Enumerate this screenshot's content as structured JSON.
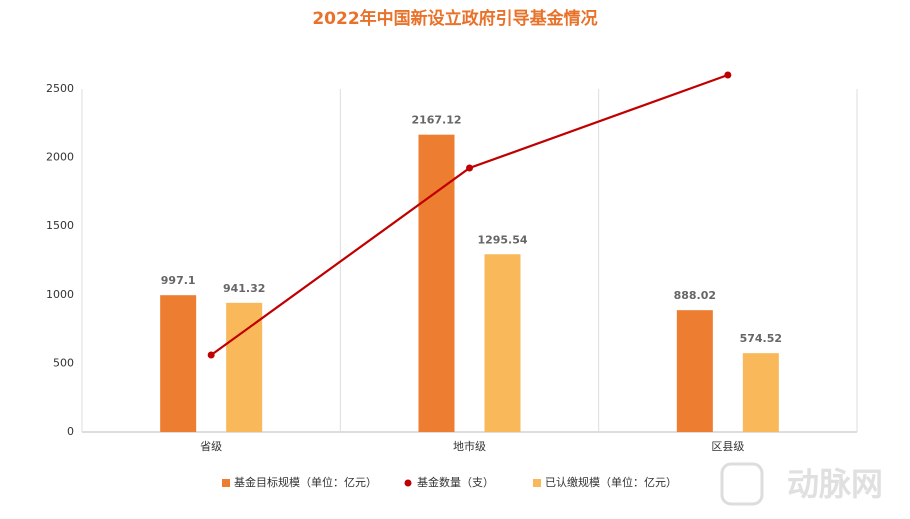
{
  "chart_data": {
    "type": "bar",
    "title": "2022年中国新设立政府引导基金情况",
    "categories": [
      "省级",
      "地市级",
      "区县级"
    ],
    "series": [
      {
        "name": "基金目标规模（单位：亿元）",
        "type": "bar",
        "color": "#ed7d31",
        "values": [
          997.1,
          2167.12,
          888.02
        ]
      },
      {
        "name": "基金数量（支）",
        "type": "line",
        "color": "#c00000",
        "values": [
          561,
          1924,
          2602
        ]
      },
      {
        "name": "已认缴规模（单位：亿元）",
        "type": "bar",
        "color": "#f9b85a",
        "values": [
          941.32,
          1295.54,
          574.52
        ]
      }
    ],
    "ylim": [
      0,
      2500
    ],
    "yticks": [
      0,
      500,
      1000,
      1500,
      2000,
      2500
    ],
    "grid": true,
    "legend": "bottom"
  },
  "watermark": "动脉网"
}
